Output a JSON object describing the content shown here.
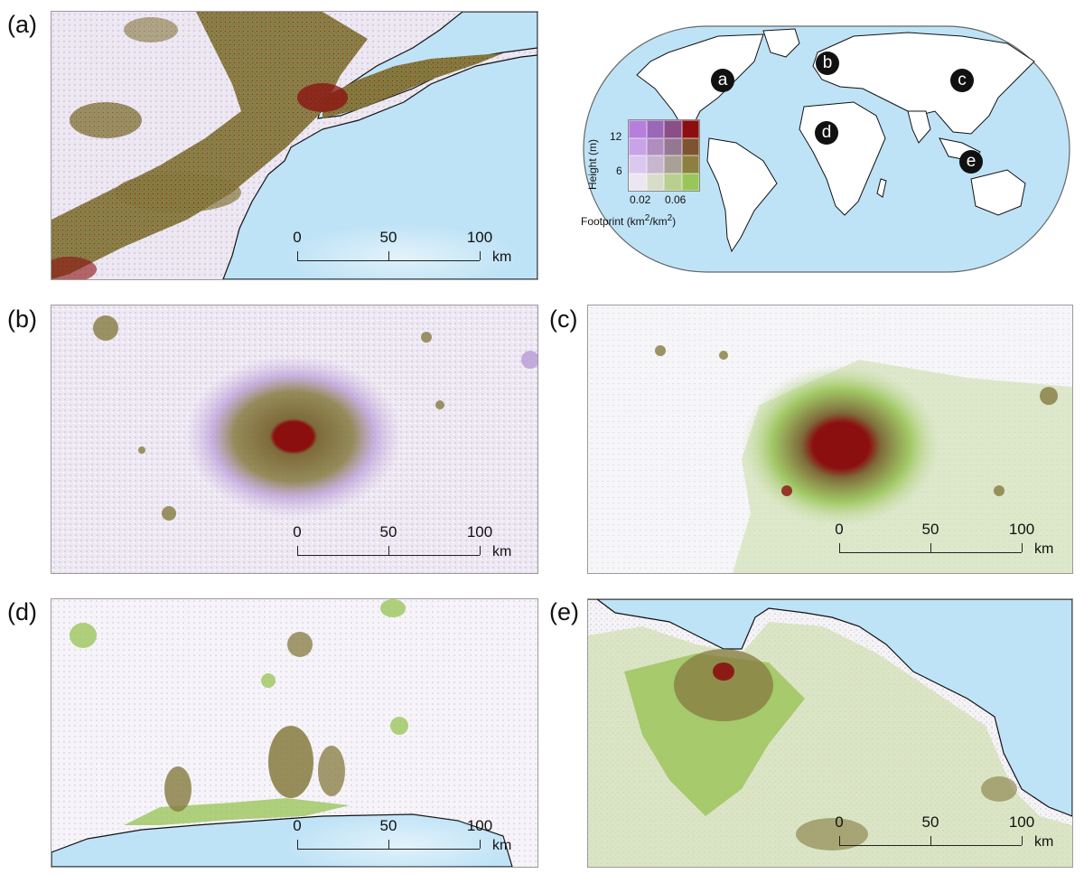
{
  "panels": {
    "a": {
      "label": "(a)"
    },
    "b": {
      "label": "(b)"
    },
    "c": {
      "label": "(c)"
    },
    "d": {
      "label": "(d)"
    },
    "e": {
      "label": "(e)"
    }
  },
  "scale": {
    "start": "0",
    "mid": "50",
    "end": "100",
    "unit": "km"
  },
  "world_markers": [
    "a",
    "b",
    "c",
    "d",
    "e"
  ],
  "legend": {
    "y_title": "Height (m)",
    "y_ticks": [
      "12",
      "6"
    ],
    "x_ticks": [
      "0.02",
      "0.06"
    ],
    "x_title_main": "Footprint (km",
    "x_title_sup1": "2",
    "x_title_mid": "/km",
    "x_title_sup2": "2",
    "x_title_end": ")",
    "matrix_colors": [
      [
        "#b77fdb",
        "#9a68b8",
        "#8a4f87",
        "#8b0f0f"
      ],
      [
        "#c8a3e6",
        "#b08cbf",
        "#947793",
        "#7d5330"
      ],
      [
        "#dcc8ee",
        "#c6b6cf",
        "#a9a196",
        "#8c8040"
      ],
      [
        "#ece6f2",
        "#d7ddc9",
        "#b9cf8e",
        "#98c65a"
      ]
    ]
  },
  "colors": {
    "water": "#bfe3f6",
    "low": "#e9e4ee",
    "purple": "#cdb4e0",
    "olive": "#857a3f",
    "dark_red": "#8b0f0f",
    "green": "#9cc65c",
    "light_green": "#c9dca5"
  }
}
